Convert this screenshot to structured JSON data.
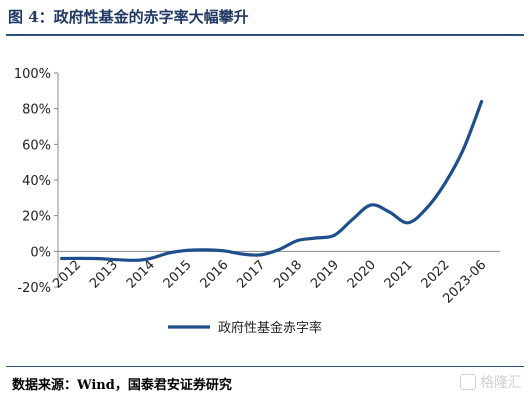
{
  "figure": {
    "title": "图 4：政府性基金的赤字率大幅攀升",
    "source": "数据来源：Wind，国泰君安证券研究",
    "watermark": "格隆汇"
  },
  "chart_data": {
    "type": "line",
    "categories": [
      "2012",
      "2013",
      "2014",
      "2015",
      "2016",
      "2017",
      "2018",
      "2019",
      "2020",
      "2021",
      "2022",
      "2023-06"
    ],
    "x_positions": [
      0,
      1,
      2,
      3,
      4,
      5,
      6,
      7,
      8,
      9,
      10,
      11
    ],
    "series": [
      {
        "name": "政府性基金赤字率",
        "x": [
          -0.4,
          0.5,
          1.5,
          2.0,
          2.5,
          3.0,
          3.5,
          4.0,
          4.5,
          5.0,
          5.5,
          6.0,
          6.5,
          7.0,
          7.5,
          8.0,
          8.5,
          9.0,
          9.5,
          10.0,
          10.5,
          11.0
        ],
        "values": [
          -4,
          -4,
          -5,
          -4,
          -1,
          0.5,
          0.8,
          0.3,
          -1.5,
          -2,
          1,
          6,
          7.5,
          9,
          18,
          26,
          22,
          16,
          24,
          38,
          57,
          84
        ],
        "color": "#1f4e8c"
      }
    ],
    "ylim": [
      -20,
      100
    ],
    "yticks": [
      -20,
      0,
      20,
      40,
      60,
      80,
      100
    ],
    "ytick_labels": [
      "-20%",
      "0%",
      "20%",
      "40%",
      "60%",
      "80%",
      "100%"
    ],
    "xlabel": "",
    "ylabel": "",
    "grid": false,
    "legend_position": "bottom-center"
  }
}
